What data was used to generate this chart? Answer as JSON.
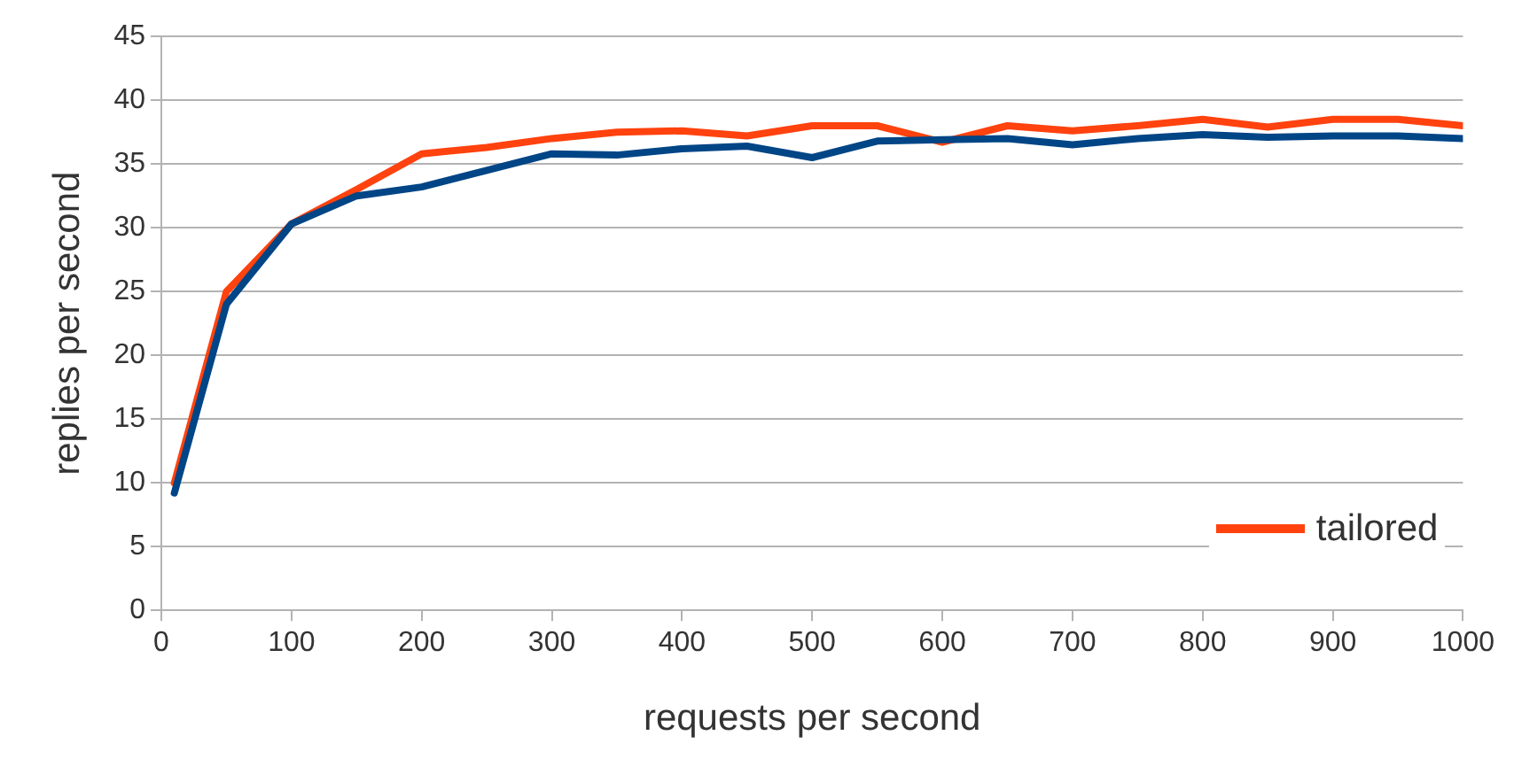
{
  "chart_data": {
    "type": "line",
    "xlabel": "requests per second",
    "ylabel": "replies per second",
    "xlim": [
      0,
      1000
    ],
    "xticks": [
      0,
      100,
      200,
      300,
      400,
      500,
      600,
      700,
      800,
      900,
      1000
    ],
    "ylim": [
      0,
      45
    ],
    "yticks": [
      0,
      5,
      10,
      15,
      20,
      25,
      30,
      35,
      40,
      45
    ],
    "grid": "y",
    "legend": "bottom right",
    "marker": "none",
    "series": [
      {
        "color": "#004586",
        "x": [
          10,
          50,
          100,
          150,
          200,
          250,
          300,
          350,
          400,
          450,
          500,
          550,
          600,
          650,
          700,
          750,
          800,
          850,
          900,
          950,
          1000
        ],
        "values": [
          9.2,
          24,
          30.3,
          32.5,
          33.2,
          34.5,
          35.8,
          35.7,
          36.2,
          36.4,
          35.5,
          36.8,
          36.9,
          37.0,
          36.5,
          37.0,
          37.3,
          37.1,
          37.2,
          37.2,
          37.0
        ]
      },
      {
        "name": "tailored",
        "color": "#ff420e",
        "x": [
          10,
          50,
          100,
          150,
          200,
          250,
          300,
          350,
          400,
          450,
          500,
          550,
          600,
          650,
          700,
          750,
          800,
          850,
          900,
          950,
          1000
        ],
        "values": [
          10,
          25,
          30.3,
          33.0,
          35.8,
          36.3,
          37.0,
          37.5,
          37.6,
          37.2,
          38.0,
          38.0,
          36.7,
          38.0,
          37.6,
          38.0,
          38.5,
          37.9,
          38.5,
          38.5,
          38.0
        ]
      }
    ]
  }
}
